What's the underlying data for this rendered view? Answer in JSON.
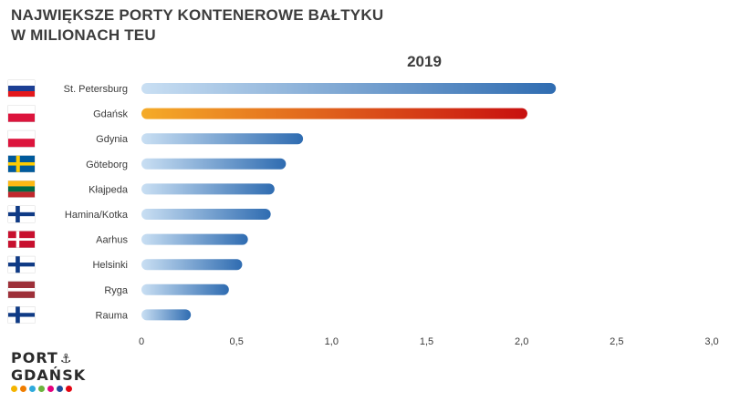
{
  "chart_data": {
    "type": "bar",
    "orientation": "horizontal",
    "title_line1": "NAJWIĘKSZE PORTY KONTENEROWE BAŁTYKU",
    "title_line2": "W MILIONACH TEU",
    "year_label": "2019",
    "xlim": [
      0,
      3.0
    ],
    "x_ticks": [
      "0",
      "0,5",
      "1,0",
      "1,5",
      "2,0",
      "2,5",
      "3,0"
    ],
    "x_tick_values": [
      0,
      0.5,
      1.0,
      1.5,
      2.0,
      2.5,
      3.0
    ],
    "grid": false,
    "categories": [
      "St. Petersburg",
      "Gdańsk",
      "Gdynia",
      "Göteborg",
      "Kłajpeda",
      "Hamina/Kotka",
      "Aarhus",
      "Helsinki",
      "Ryga",
      "Rauma"
    ],
    "values": [
      2.18,
      2.03,
      0.85,
      0.76,
      0.7,
      0.68,
      0.56,
      0.53,
      0.46,
      0.26
    ],
    "flags": [
      "russia-flag",
      "poland-flag",
      "poland-flag",
      "sweden-flag",
      "lithuania-flag",
      "finland-flag",
      "denmark-flag",
      "finland-flag",
      "latvia-flag",
      "finland-flag"
    ],
    "highlight": "Gdańsk",
    "colors": {
      "bar_start": "#c9dff3",
      "bar_end": "#2f6cb1",
      "highlight_start": "#f5ab28",
      "highlight_end": "#c8100f"
    }
  },
  "logo": {
    "line1": "PORT",
    "line2": "GDAŃSK",
    "icon": "anchor-icon",
    "dot_colors": [
      "#f4b400",
      "#ef7d00",
      "#2eaadc",
      "#6cb33e",
      "#e5007e",
      "#1f4e9c",
      "#e30613"
    ]
  }
}
